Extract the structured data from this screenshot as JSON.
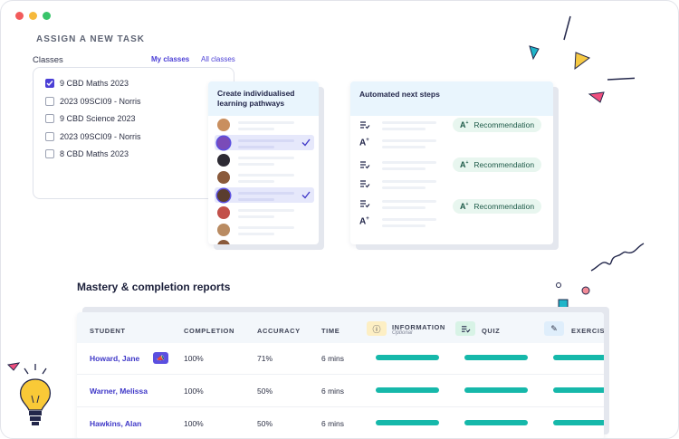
{
  "window": {
    "traffic_colors": [
      "#f25b5b",
      "#f6b93b",
      "#39c46a"
    ]
  },
  "assign": {
    "title": "ASSIGN A NEW TASK",
    "classes_label": "Classes",
    "tab_my": "My classes",
    "tab_all": "All classes",
    "classes": [
      {
        "label": "9 CBD Maths 2023",
        "checked": true
      },
      {
        "label": "2023 09SCI09 - Norris",
        "checked": false
      },
      {
        "label": "9 CBD Science 2023",
        "checked": false
      },
      {
        "label": "2023 09SCI09 - Norris",
        "checked": false
      },
      {
        "label": "8 CBD Maths 2023",
        "checked": false
      }
    ]
  },
  "pathways": {
    "title": "Create individualised learning pathways"
  },
  "next_steps": {
    "title": "Automated next steps",
    "recommendation_label": "Recommendation"
  },
  "reports": {
    "title": "Mastery & completion reports",
    "columns": {
      "student": "STUDENT",
      "completion": "COMPLETION",
      "accuracy": "ACCURACY",
      "time": "TIME",
      "information": "INFORMATION",
      "information_sub": "Optional",
      "quiz": "QUIZ",
      "exercise": "EXERCISE"
    },
    "rows": [
      {
        "student": "Howard, Jane",
        "completion": "100%",
        "accuracy": "71%",
        "time": "6 mins"
      },
      {
        "student": "Warner, Melissa",
        "completion": "100%",
        "accuracy": "50%",
        "time": "6 mins"
      },
      {
        "student": "Hawkins, Alan",
        "completion": "100%",
        "accuracy": "50%",
        "time": "6 mins"
      }
    ]
  },
  "colors": {
    "accent": "#4b3fd6",
    "progress": "#16b8aa",
    "panel_head": "#e9f5fd"
  }
}
